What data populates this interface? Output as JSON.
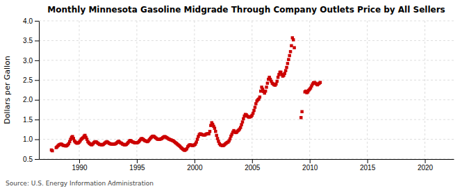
{
  "chart_data": {
    "type": "scatter",
    "title": "Monthly Minnesota Gasoline Midgrade Through Company Outlets Price by All Sellers",
    "ylabel": "Dollars per Gallon",
    "annotation": "Source: U.S. Energy Information Administration",
    "color": "#CC0000",
    "marker": "square",
    "grid": true,
    "xlim": [
      1986.5,
      2022.5
    ],
    "ylim": [
      0.5,
      4.0
    ],
    "xticks": [
      1990,
      1995,
      2000,
      2005,
      2010,
      2015,
      2020
    ],
    "yticks": [
      0.5,
      {
        "value": 1.0,
        "label": "1.0"
      },
      1.5,
      {
        "value": 2.0,
        "label": "2.0"
      },
      2.5,
      {
        "value": 3.0,
        "label": "3.0"
      },
      3.5,
      {
        "value": 4.0,
        "label": "4.0"
      }
    ],
    "x": [
      1987.583,
      1987.667,
      1988.0,
      1988.083,
      1988.167,
      1988.25,
      1988.333,
      1988.417,
      1988.5,
      1988.583,
      1988.667,
      1988.75,
      1988.833,
      1988.917,
      1989.0,
      1989.083,
      1989.167,
      1989.25,
      1989.333,
      1989.417,
      1989.5,
      1989.583,
      1989.667,
      1989.75,
      1989.833,
      1989.917,
      1990.0,
      1990.083,
      1990.167,
      1990.25,
      1990.333,
      1990.417,
      1990.5,
      1990.583,
      1990.667,
      1990.75,
      1990.833,
      1990.917,
      1991.0,
      1991.083,
      1991.167,
      1991.25,
      1991.333,
      1991.417,
      1991.5,
      1991.583,
      1991.667,
      1991.75,
      1991.833,
      1991.917,
      1992.0,
      1992.083,
      1992.167,
      1992.25,
      1992.333,
      1992.417,
      1992.5,
      1992.583,
      1992.667,
      1992.75,
      1992.833,
      1992.917,
      1993.0,
      1993.083,
      1993.167,
      1993.25,
      1993.333,
      1993.417,
      1993.5,
      1993.583,
      1993.667,
      1993.75,
      1993.833,
      1993.917,
      1994.0,
      1994.083,
      1994.167,
      1994.25,
      1994.333,
      1994.417,
      1994.5,
      1994.583,
      1994.667,
      1994.75,
      1994.833,
      1994.917,
      1995.0,
      1995.083,
      1995.167,
      1995.25,
      1995.333,
      1995.417,
      1995.5,
      1995.583,
      1995.667,
      1995.75,
      1995.833,
      1995.917,
      1996.0,
      1996.083,
      1996.167,
      1996.25,
      1996.333,
      1996.417,
      1996.5,
      1996.583,
      1996.667,
      1996.75,
      1996.833,
      1996.917,
      1997.0,
      1997.083,
      1997.167,
      1997.25,
      1997.333,
      1997.417,
      1997.5,
      1997.583,
      1997.667,
      1997.75,
      1997.833,
      1997.917,
      1998.0,
      1998.083,
      1998.167,
      1998.25,
      1998.333,
      1998.417,
      1998.5,
      1998.583,
      1998.667,
      1998.75,
      1998.833,
      1998.917,
      1999.0,
      1999.083,
      1999.167,
      1999.25,
      1999.333,
      1999.417,
      1999.5,
      1999.583,
      1999.667,
      1999.75,
      1999.833,
      1999.917,
      2000.0,
      2000.083,
      2000.167,
      2000.25,
      2000.333,
      2000.417,
      2000.5,
      2000.583,
      2000.667,
      2000.75,
      2000.833,
      2000.917,
      2001.0,
      2001.083,
      2001.167,
      2001.25,
      2001.333,
      2001.417,
      2001.5,
      2001.583,
      2001.667,
      2001.75,
      2001.833,
      2001.917,
      2002.0,
      2002.083,
      2002.167,
      2002.25,
      2002.333,
      2002.417,
      2002.5,
      2002.583,
      2002.667,
      2002.75,
      2002.833,
      2002.917,
      2003.0,
      2003.083,
      2003.167,
      2003.25,
      2003.333,
      2003.417,
      2003.5,
      2003.583,
      2003.667,
      2003.75,
      2003.833,
      2003.917,
      2004.0,
      2004.083,
      2004.167,
      2004.25,
      2004.333,
      2004.417,
      2004.5,
      2004.583,
      2004.667,
      2004.75,
      2004.833,
      2004.917,
      2005.0,
      2005.083,
      2005.167,
      2005.25,
      2005.333,
      2005.417,
      2005.5,
      2005.583,
      2005.667,
      2005.75,
      2005.833,
      2005.917,
      2006.0,
      2006.083,
      2006.167,
      2006.25,
      2006.333,
      2006.417,
      2006.5,
      2006.583,
      2006.667,
      2006.75,
      2006.833,
      2006.917,
      2007.0,
      2007.083,
      2007.167,
      2007.25,
      2007.333,
      2007.417,
      2007.5,
      2007.583,
      2007.667,
      2007.75,
      2007.833,
      2007.917,
      2008.0,
      2008.083,
      2008.167,
      2008.25,
      2008.333,
      2008.417,
      2008.5,
      2008.583,
      2008.667,
      2009.25,
      2009.333,
      2009.583,
      2009.667,
      2009.75,
      2009.833,
      2009.917,
      2010.0,
      2010.083,
      2010.167,
      2010.25,
      2010.333,
      2010.417,
      2010.5,
      2010.583,
      2010.667,
      2010.75,
      2010.833,
      2010.917
    ],
    "values": [
      0.73,
      0.71,
      0.79,
      0.81,
      0.84,
      0.86,
      0.87,
      0.88,
      0.87,
      0.85,
      0.84,
      0.84,
      0.83,
      0.84,
      0.86,
      0.89,
      0.94,
      1.0,
      1.05,
      1.07,
      1.02,
      0.96,
      0.93,
      0.91,
      0.9,
      0.91,
      0.93,
      0.96,
      1.0,
      1.02,
      1.04,
      1.08,
      1.1,
      1.05,
      1.0,
      0.94,
      0.91,
      0.89,
      0.87,
      0.86,
      0.88,
      0.91,
      0.93,
      0.94,
      0.93,
      0.91,
      0.89,
      0.87,
      0.87,
      0.86,
      0.86,
      0.87,
      0.89,
      0.91,
      0.93,
      0.94,
      0.92,
      0.9,
      0.89,
      0.88,
      0.88,
      0.88,
      0.88,
      0.88,
      0.89,
      0.91,
      0.93,
      0.95,
      0.93,
      0.91,
      0.9,
      0.88,
      0.87,
      0.86,
      0.86,
      0.87,
      0.89,
      0.92,
      0.95,
      0.97,
      0.96,
      0.94,
      0.93,
      0.92,
      0.91,
      0.91,
      0.91,
      0.92,
      0.94,
      0.97,
      1.0,
      1.02,
      1.01,
      0.99,
      0.97,
      0.96,
      0.95,
      0.94,
      0.96,
      0.99,
      1.02,
      1.05,
      1.07,
      1.08,
      1.07,
      1.05,
      1.03,
      1.01,
      1.0,
      1.0,
      1.0,
      1.01,
      1.02,
      1.04,
      1.06,
      1.07,
      1.06,
      1.04,
      1.03,
      1.01,
      1.0,
      0.99,
      0.98,
      0.97,
      0.96,
      0.94,
      0.92,
      0.9,
      0.88,
      0.86,
      0.84,
      0.82,
      0.79,
      0.77,
      0.75,
      0.73,
      0.72,
      0.74,
      0.76,
      0.81,
      0.84,
      0.86,
      0.86,
      0.85,
      0.84,
      0.85,
      0.86,
      0.88,
      0.93,
      1.0,
      1.07,
      1.12,
      1.14,
      1.13,
      1.12,
      1.11,
      1.11,
      1.11,
      1.13,
      1.14,
      1.14,
      1.14,
      1.2,
      1.35,
      1.42,
      1.38,
      1.33,
      1.28,
      1.2,
      1.1,
      1.02,
      0.95,
      0.89,
      0.86,
      0.85,
      0.84,
      0.84,
      0.86,
      0.88,
      0.9,
      0.92,
      0.93,
      0.96,
      1.01,
      1.08,
      1.13,
      1.18,
      1.22,
      1.19,
      1.17,
      1.18,
      1.21,
      1.23,
      1.26,
      1.3,
      1.37,
      1.44,
      1.52,
      1.59,
      1.63,
      1.62,
      1.59,
      1.57,
      1.56,
      1.57,
      1.58,
      1.61,
      1.66,
      1.73,
      1.81,
      1.9,
      1.97,
      2.0,
      2.02,
      2.07,
      2.22,
      2.32,
      2.27,
      2.21,
      2.17,
      2.22,
      2.32,
      2.42,
      2.52,
      2.57,
      2.52,
      2.47,
      2.42,
      2.4,
      2.38,
      2.37,
      2.4,
      2.47,
      2.57,
      2.64,
      2.7,
      2.7,
      2.64,
      2.6,
      2.62,
      2.67,
      2.74,
      2.82,
      2.92,
      3.02,
      3.12,
      3.22,
      3.37,
      3.57,
      3.52,
      3.32,
      1.55,
      1.7,
      2.2,
      2.22,
      2.18,
      2.2,
      2.24,
      2.27,
      2.3,
      2.35,
      2.4,
      2.43,
      2.44,
      2.42,
      2.4,
      2.38,
      2.4,
      2.42,
      2.44
    ]
  }
}
